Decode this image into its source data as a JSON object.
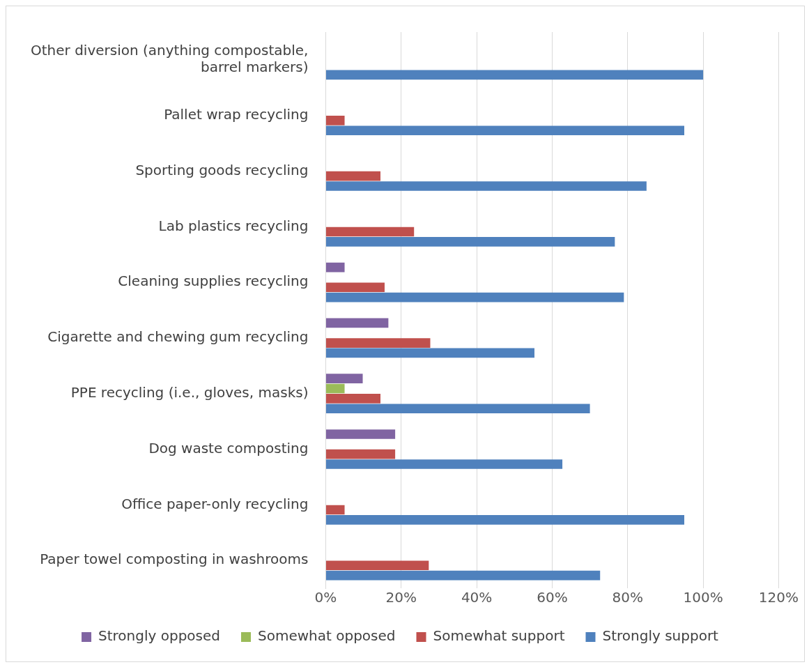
{
  "chart_data": {
    "type": "bar",
    "orientation": "horizontal",
    "categories": [
      "Other diversion (anything compostable, barrel markers)",
      "Pallet wrap recycling",
      "Sporting goods recycling",
      "Lab plastics recycling",
      "Cleaning supplies recycling",
      "Cigarette and chewing gum recycling",
      "PPE recycling (i.e., gloves, masks)",
      "Dog waste composting",
      "Office paper-only recycling",
      "Paper towel composting in washrooms"
    ],
    "series": [
      {
        "name": "Strongly opposed",
        "color": "#8064a2",
        "values": [
          0,
          0,
          0,
          0,
          5,
          16.6,
          9.8,
          18.4,
          0,
          0
        ]
      },
      {
        "name": "Somewhat opposed",
        "color": "#9bbb59",
        "values": [
          0,
          0,
          0,
          0,
          0,
          0,
          5,
          0,
          0,
          0
        ]
      },
      {
        "name": "Somewhat support",
        "color": "#c0504d",
        "values": [
          0,
          5,
          14.5,
          23.4,
          15.6,
          27.7,
          14.5,
          18.4,
          5,
          27.3
        ]
      },
      {
        "name": "Strongly support",
        "color": "#4f81bd",
        "values": [
          100,
          95,
          85,
          76.6,
          79,
          55.3,
          70,
          62.7,
          95,
          72.7
        ]
      }
    ],
    "xlim": [
      0,
      120
    ],
    "xticks": [
      {
        "value": 0,
        "label": "0%"
      },
      {
        "value": 20,
        "label": "20%"
      },
      {
        "value": 40,
        "label": "40%"
      },
      {
        "value": 60,
        "label": "60%"
      },
      {
        "value": 80,
        "label": "80%"
      },
      {
        "value": 100,
        "label": "100%"
      },
      {
        "value": 120,
        "label": "120%"
      }
    ],
    "grid": "x",
    "legend": "bottom"
  }
}
